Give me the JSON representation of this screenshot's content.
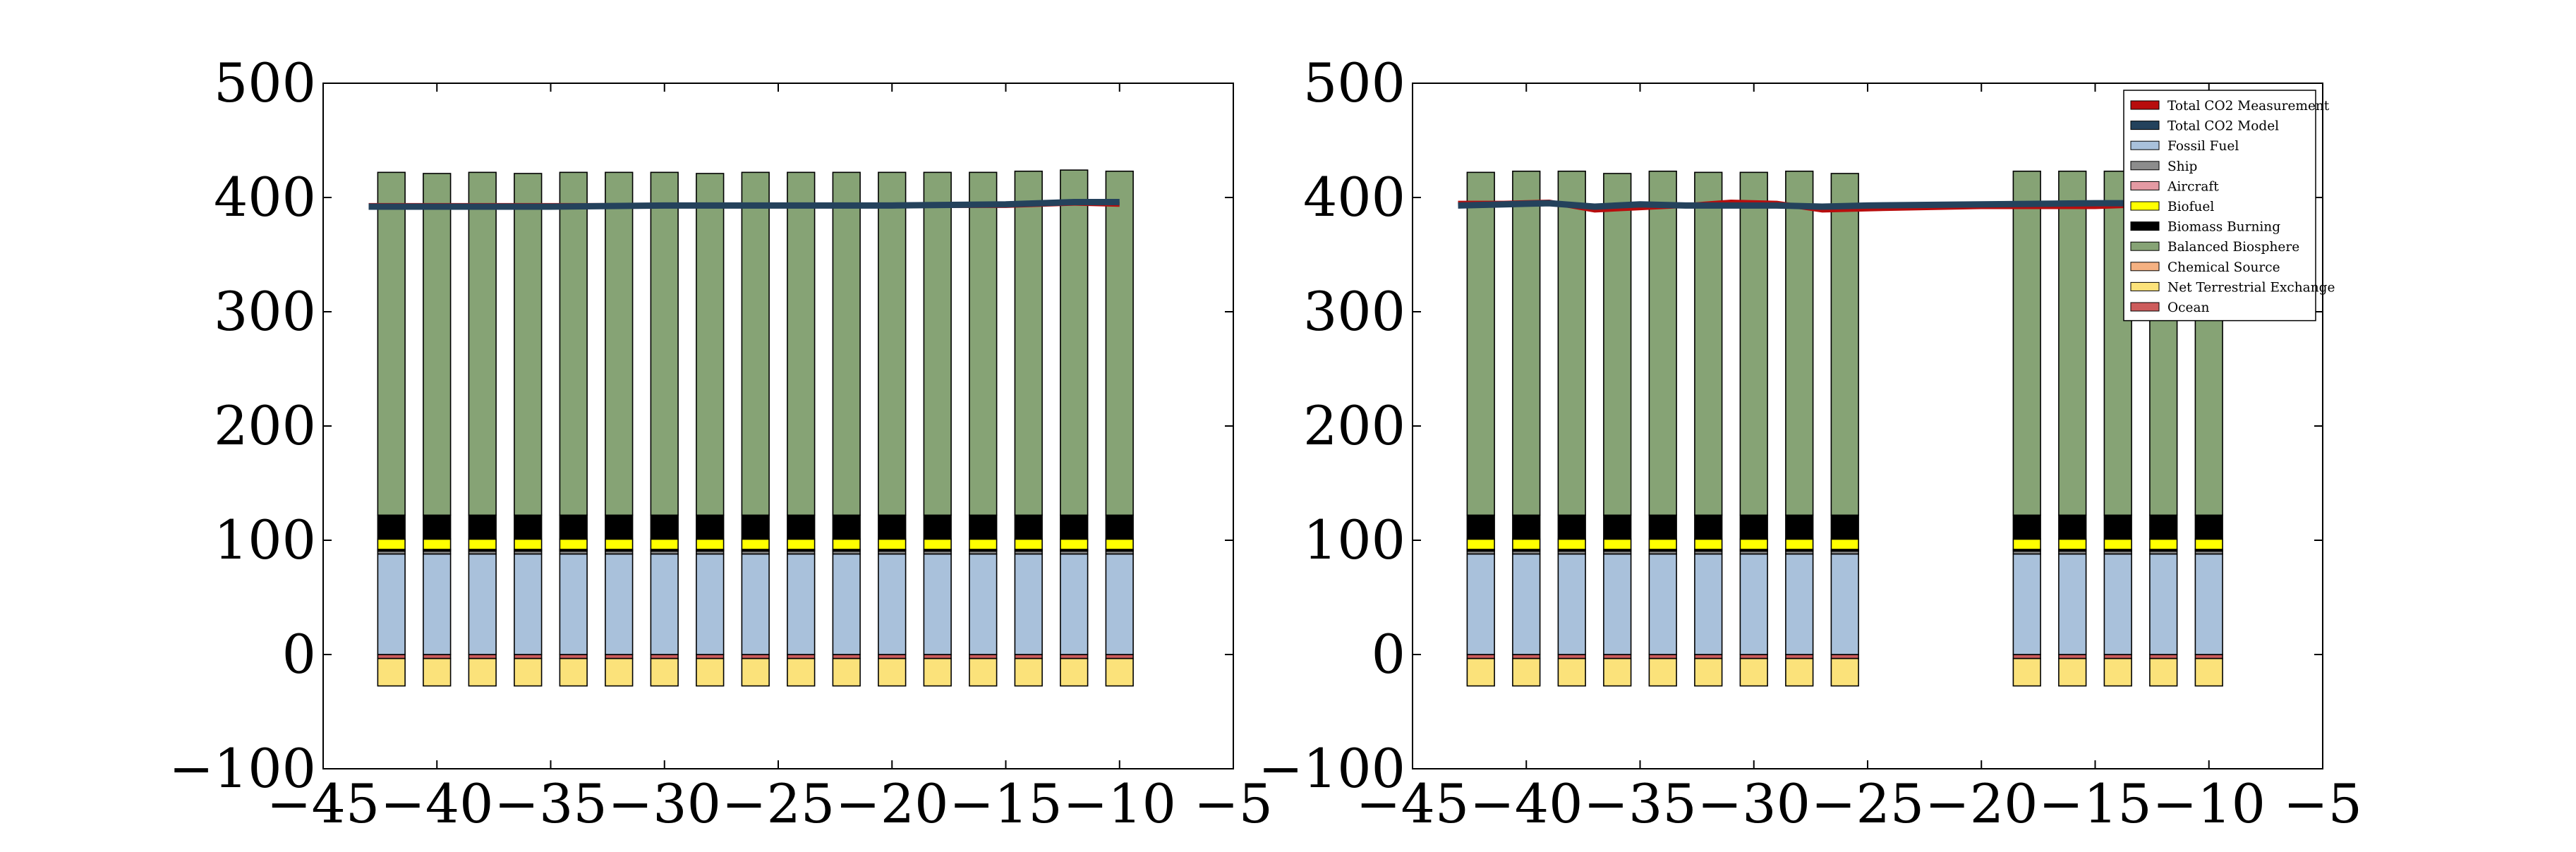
{
  "colors": {
    "Total CO2 Measurement": "#b80d0d",
    "Total CO2 Model": "#24425c",
    "Fossil Fuel": "#a9c1db",
    "Ship": "#8c8c8c",
    "Aircraft": "#e49aa3",
    "Biofuel": "#ffff00",
    "Biomass Burning": "#000000",
    "Balanced Biosphere": "#86a375",
    "Chemical Source": "#f5b182",
    "Net Terrestrial Exchange": "#fbe27a",
    "Ocean": "#cd5c5c"
  },
  "chart_data": [
    {
      "type": "bar",
      "stacked": true,
      "xlim": [
        -45,
        -5
      ],
      "ylim": [
        -100,
        500
      ],
      "x_ticks": [
        -45,
        -40,
        -35,
        -30,
        -25,
        -20,
        -15,
        -10,
        -5
      ],
      "x_tick_labels": [
        "−45",
        "−40",
        "−35",
        "−30",
        "−25",
        "−20",
        "−15",
        "−10",
        "−5"
      ],
      "y_ticks": [
        -100,
        0,
        100,
        200,
        300,
        400,
        500
      ],
      "y_tick_labels": [
        "−100",
        "0",
        "100",
        "200",
        "300",
        "400",
        "500"
      ],
      "grid": false,
      "x": [
        -42,
        -40,
        -38,
        -36,
        -34,
        -32,
        -30,
        -28,
        -26,
        -24,
        -22,
        -20,
        -18,
        -16,
        -14,
        -12,
        -10
      ],
      "bars": [
        {
          "name": "Ocean",
          "values": [
            -3.5,
            -3.5,
            -3.5,
            -3.5,
            -3.5,
            -3.5,
            -3.5,
            -3.5,
            -3.5,
            -3.5,
            -3.5,
            -3.5,
            -3.5,
            -3.5,
            -3.5,
            -3.5,
            -3.5
          ]
        },
        {
          "name": "Net Terrestrial Exchange",
          "values": [
            -24,
            -24,
            -24,
            -24,
            -24,
            -24,
            -24,
            -24,
            -24,
            -24,
            -24,
            -24,
            -24,
            -24,
            -24,
            -24,
            -24
          ]
        },
        {
          "name": "Fossil Fuel",
          "values": [
            88,
            88,
            88,
            88,
            88,
            88,
            88,
            88,
            88,
            88,
            88,
            88,
            88,
            88,
            88,
            88,
            88
          ]
        },
        {
          "name": "Ship",
          "values": [
            2.5,
            2.5,
            2.5,
            2.5,
            2.5,
            2.5,
            2.5,
            2.5,
            2.5,
            2.5,
            2.5,
            2.5,
            2.5,
            2.5,
            2.5,
            2.5,
            2.5
          ]
        },
        {
          "name": "Aircraft",
          "values": [
            1,
            1,
            1,
            1,
            1,
            1,
            1,
            1,
            1,
            1,
            1,
            1,
            1,
            1,
            1,
            1,
            1
          ]
        },
        {
          "name": "Chemical Source",
          "values": [
            0.5,
            0.5,
            0.5,
            0.5,
            0.5,
            0.5,
            0.5,
            0.5,
            0.5,
            0.5,
            0.5,
            0.5,
            0.5,
            0.5,
            0.5,
            0.5,
            0.5
          ]
        },
        {
          "name": "Biofuel",
          "values": [
            9,
            9,
            9,
            9,
            9,
            9,
            9,
            9,
            9,
            9,
            9,
            9,
            9,
            9,
            9,
            9,
            9
          ]
        },
        {
          "name": "Biomass Burning",
          "values": [
            21,
            21,
            21,
            21,
            21,
            21,
            21,
            21,
            21,
            21,
            21,
            21,
            21,
            21,
            21,
            21,
            21
          ]
        },
        {
          "name": "Balanced Biosphere",
          "values": [
            300,
            299,
            300,
            299,
            300,
            300,
            300,
            299,
            300,
            300,
            300,
            300,
            300,
            300,
            301,
            302,
            301
          ]
        }
      ],
      "lines": [
        {
          "name": "Total CO2 Measurement",
          "x": [
            -43,
            -40,
            -35,
            -30,
            -25,
            -20,
            -15,
            -12,
            -10
          ],
          "y": [
            393,
            393,
            393,
            393,
            393,
            393,
            393,
            395,
            394
          ]
        },
        {
          "name": "Total CO2 Model",
          "x": [
            -43,
            -40,
            -35,
            -30,
            -25,
            -20,
            -15,
            -12,
            -10
          ],
          "y": [
            392,
            392,
            392,
            393,
            393,
            393,
            394,
            396,
            396
          ]
        }
      ]
    },
    {
      "type": "bar",
      "stacked": true,
      "xlim": [
        -45,
        -5
      ],
      "ylim": [
        -100,
        500
      ],
      "x_ticks": [
        -45,
        -40,
        -35,
        -30,
        -25,
        -20,
        -15,
        -10,
        -5
      ],
      "x_tick_labels": [
        "−45",
        "−40",
        "−35",
        "−30",
        "−25",
        "−20",
        "−15",
        "−10",
        "−5"
      ],
      "y_ticks": [
        -100,
        0,
        100,
        200,
        300,
        400,
        500
      ],
      "y_tick_labels": [
        "−100",
        "0",
        "100",
        "200",
        "300",
        "400",
        "500"
      ],
      "grid": false,
      "legend": {
        "location": "upper right",
        "entries": [
          "Total CO2 Measurement",
          "Total CO2 Model",
          "Fossil Fuel",
          "Ship",
          "Aircraft",
          "Biofuel",
          "Biomass Burning",
          "Balanced Biosphere",
          "Chemical Source",
          "Net Terrestrial Exchange",
          "Ocean"
        ]
      },
      "x": [
        -42,
        -40,
        -38,
        -36,
        -34,
        -32,
        -30,
        -28,
        -26,
        -18,
        -16,
        -14,
        -12,
        -10
      ],
      "bars": [
        {
          "name": "Ocean",
          "values": [
            -3.5,
            -3.5,
            -3.5,
            -3.5,
            -3.5,
            -3.5,
            -3.5,
            -3.5,
            -3.5,
            -3.5,
            -3.5,
            -3.5,
            -3.5,
            -3.5
          ]
        },
        {
          "name": "Net Terrestrial Exchange",
          "values": [
            -24,
            -24,
            -24,
            -24,
            -24,
            -24,
            -24,
            -24,
            -24,
            -24,
            -24,
            -24,
            -24,
            -24
          ]
        },
        {
          "name": "Fossil Fuel",
          "values": [
            88,
            88,
            88,
            88,
            88,
            88,
            88,
            88,
            88,
            88,
            88,
            88,
            88,
            88
          ]
        },
        {
          "name": "Ship",
          "values": [
            2.5,
            2.5,
            2.5,
            2.5,
            2.5,
            2.5,
            2.5,
            2.5,
            2.5,
            2.5,
            2.5,
            2.5,
            2.5,
            2.5
          ]
        },
        {
          "name": "Aircraft",
          "values": [
            1,
            1,
            1,
            1,
            1,
            1,
            1,
            1,
            1,
            1,
            1,
            1,
            1,
            1
          ]
        },
        {
          "name": "Chemical Source",
          "values": [
            0.5,
            0.5,
            0.5,
            0.5,
            0.5,
            0.5,
            0.5,
            0.5,
            0.5,
            0.5,
            0.5,
            0.5,
            0.5,
            0.5
          ]
        },
        {
          "name": "Biofuel",
          "values": [
            9,
            9,
            9,
            9,
            9,
            9,
            9,
            9,
            9,
            9,
            9,
            9,
            9,
            9
          ]
        },
        {
          "name": "Biomass Burning",
          "values": [
            21,
            21,
            21,
            21,
            21,
            21,
            21,
            21,
            21,
            21,
            21,
            21,
            21,
            21
          ]
        },
        {
          "name": "Balanced Biosphere",
          "values": [
            300,
            301,
            301,
            299,
            301,
            300,
            300,
            301,
            299,
            301,
            301,
            301,
            300,
            300
          ]
        }
      ],
      "lines": [
        {
          "name": "Total CO2 Measurement",
          "x": [
            -43,
            -41,
            -39,
            -37,
            -35,
            -33,
            -31,
            -29,
            -27,
            -25,
            -20,
            -15,
            -12,
            -10
          ],
          "y": [
            395,
            395,
            396,
            389,
            391,
            393,
            396,
            395,
            389,
            390,
            392,
            392,
            394,
            394
          ]
        },
        {
          "name": "Total CO2 Model",
          "x": [
            -43,
            -41,
            -39,
            -37,
            -35,
            -33,
            -31,
            -29,
            -27,
            -25,
            -20,
            -15,
            -12,
            -10
          ],
          "y": [
            393,
            394,
            395,
            392,
            394,
            393,
            393,
            393,
            392,
            393,
            394,
            395,
            395,
            395
          ]
        }
      ]
    }
  ]
}
